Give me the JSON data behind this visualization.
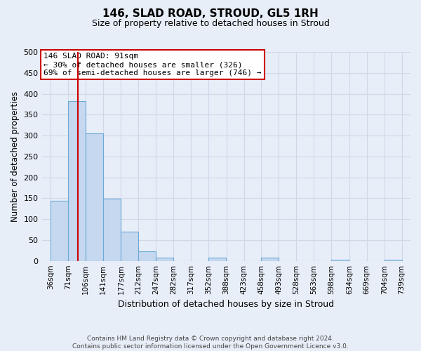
{
  "title": "146, SLAD ROAD, STROUD, GL5 1RH",
  "subtitle": "Size of property relative to detached houses in Stroud",
  "xlabel": "Distribution of detached houses by size in Stroud",
  "ylabel": "Number of detached properties",
  "bin_edges": [
    36,
    71,
    106,
    141,
    177,
    212,
    247,
    282,
    317,
    352,
    388,
    423,
    458,
    493,
    528,
    563,
    598,
    634,
    669,
    704,
    739
  ],
  "bar_heights": [
    144,
    383,
    305,
    149,
    70,
    23,
    8,
    0,
    0,
    8,
    0,
    0,
    8,
    0,
    0,
    0,
    3,
    0,
    0,
    3
  ],
  "bar_color": "#c5d8f0",
  "bar_edge_color": "#6aaad4",
  "vline_x": 91,
  "vline_color": "#cc0000",
  "annotation_text": "146 SLAD ROAD: 91sqm\n← 30% of detached houses are smaller (326)\n69% of semi-detached houses are larger (746) →",
  "annotation_box_color": "#ffffff",
  "annotation_box_edge_color": "#cc0000",
  "ylim": [
    0,
    500
  ],
  "yticks": [
    0,
    50,
    100,
    150,
    200,
    250,
    300,
    350,
    400,
    450,
    500
  ],
  "grid_color": "#d0d8e8",
  "background_color": "#e8eef8",
  "plot_bg_color": "#e8eef8",
  "footer_text": "Contains HM Land Registry data © Crown copyright and database right 2024.\nContains public sector information licensed under the Open Government Licence v3.0.",
  "tick_labels": [
    "36sqm",
    "71sqm",
    "106sqm",
    "141sqm",
    "177sqm",
    "212sqm",
    "247sqm",
    "282sqm",
    "317sqm",
    "352sqm",
    "388sqm",
    "423sqm",
    "458sqm",
    "493sqm",
    "528sqm",
    "563sqm",
    "598sqm",
    "634sqm",
    "669sqm",
    "704sqm",
    "739sqm"
  ],
  "title_fontsize": 11,
  "subtitle_fontsize": 9,
  "ylabel_fontsize": 8.5,
  "xlabel_fontsize": 9,
  "ytick_fontsize": 8,
  "xtick_fontsize": 7.5
}
